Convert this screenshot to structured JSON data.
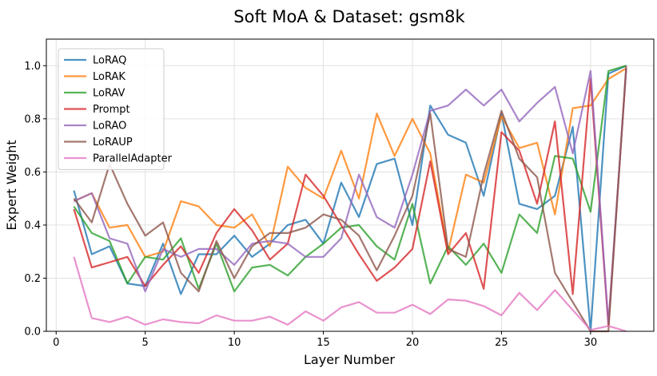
{
  "chart_data": {
    "type": "line",
    "title": "Soft MoA & Dataset: gsm8k",
    "xlabel": "Layer Number",
    "ylabel": "Expert Weight",
    "xlim": [
      -0.55,
      33.55
    ],
    "ylim": [
      0,
      1.1
    ],
    "xticks": [
      0,
      5,
      10,
      15,
      20,
      25,
      30
    ],
    "yticks": [
      0.0,
      0.2,
      0.4,
      0.6,
      0.8,
      1.0
    ],
    "xtick_labels": [
      "0",
      "5",
      "10",
      "15",
      "20",
      "25",
      "30"
    ],
    "ytick_labels": [
      "0.0",
      "0.2",
      "0.4",
      "0.6",
      "0.8",
      "1.0"
    ],
    "grid": true,
    "legend_position": "top-left",
    "x": [
      1,
      2,
      3,
      4,
      5,
      6,
      7,
      8,
      9,
      10,
      11,
      12,
      13,
      14,
      15,
      16,
      17,
      18,
      19,
      20,
      21,
      22,
      23,
      24,
      25,
      26,
      27,
      28,
      29,
      30,
      31,
      32
    ],
    "series": [
      {
        "name": "LoRAQ",
        "color": "#1f77b4",
        "values": [
          0.53,
          0.29,
          0.32,
          0.18,
          0.17,
          0.33,
          0.14,
          0.29,
          0.29,
          0.36,
          0.28,
          0.33,
          0.4,
          0.42,
          0.33,
          0.56,
          0.43,
          0.63,
          0.65,
          0.4,
          0.85,
          0.74,
          0.71,
          0.51,
          0.82,
          0.48,
          0.46,
          0.51,
          0.77,
          0.0,
          0.97,
          1.0
        ]
      },
      {
        "name": "LoRAK",
        "color": "#ff7f0e",
        "values": [
          0.49,
          0.52,
          0.39,
          0.4,
          0.28,
          0.3,
          0.49,
          0.47,
          0.4,
          0.39,
          0.44,
          0.32,
          0.62,
          0.54,
          0.5,
          0.68,
          0.5,
          0.82,
          0.66,
          0.8,
          0.67,
          0.3,
          0.59,
          0.56,
          0.81,
          0.69,
          0.71,
          0.44,
          0.84,
          0.85,
          0.95,
          0.99
        ]
      },
      {
        "name": "LoRAV",
        "color": "#2ca02c",
        "values": [
          0.47,
          0.37,
          0.34,
          0.18,
          0.28,
          0.27,
          0.35,
          0.16,
          0.33,
          0.15,
          0.24,
          0.25,
          0.21,
          0.28,
          0.33,
          0.39,
          0.4,
          0.32,
          0.27,
          0.48,
          0.18,
          0.32,
          0.25,
          0.33,
          0.22,
          0.44,
          0.37,
          0.66,
          0.65,
          0.45,
          0.98,
          1.0
        ]
      },
      {
        "name": "Prompt",
        "color": "#d62728",
        "values": [
          0.46,
          0.24,
          0.26,
          0.28,
          0.17,
          0.25,
          0.32,
          0.22,
          0.37,
          0.46,
          0.38,
          0.27,
          0.33,
          0.59,
          0.51,
          0.4,
          0.29,
          0.19,
          0.24,
          0.31,
          0.64,
          0.29,
          0.37,
          0.16,
          0.75,
          0.68,
          0.48,
          0.79,
          0.14,
          0.95,
          0.02,
          0.99
        ]
      },
      {
        "name": "LoRAO",
        "color": "#9467bd",
        "values": [
          0.49,
          0.52,
          0.35,
          0.33,
          0.15,
          0.31,
          0.28,
          0.31,
          0.31,
          0.25,
          0.33,
          0.34,
          0.33,
          0.28,
          0.28,
          0.35,
          0.59,
          0.43,
          0.39,
          0.59,
          0.83,
          0.85,
          0.91,
          0.85,
          0.91,
          0.79,
          0.86,
          0.92,
          0.67,
          0.98,
          0.03,
          0.99
        ]
      },
      {
        "name": "LoRAUP",
        "color": "#8c564b",
        "values": [
          0.5,
          0.41,
          0.63,
          0.48,
          0.36,
          0.41,
          0.22,
          0.15,
          0.34,
          0.2,
          0.32,
          0.37,
          0.37,
          0.39,
          0.44,
          0.42,
          0.36,
          0.23,
          0.36,
          0.51,
          0.82,
          0.31,
          0.28,
          0.59,
          0.83,
          0.65,
          0.58,
          0.22,
          0.11,
          0.0,
          0.0,
          1.0
        ]
      },
      {
        "name": "ParallelAdapter",
        "color": "#e377c2",
        "values": [
          0.28,
          0.05,
          0.035,
          0.055,
          0.025,
          0.045,
          0.035,
          0.03,
          0.06,
          0.04,
          0.04,
          0.055,
          0.025,
          0.075,
          0.04,
          0.09,
          0.11,
          0.07,
          0.07,
          0.1,
          0.065,
          0.12,
          0.115,
          0.095,
          0.06,
          0.145,
          0.08,
          0.155,
          0.08,
          0.005,
          0.02,
          0.0
        ]
      }
    ]
  }
}
